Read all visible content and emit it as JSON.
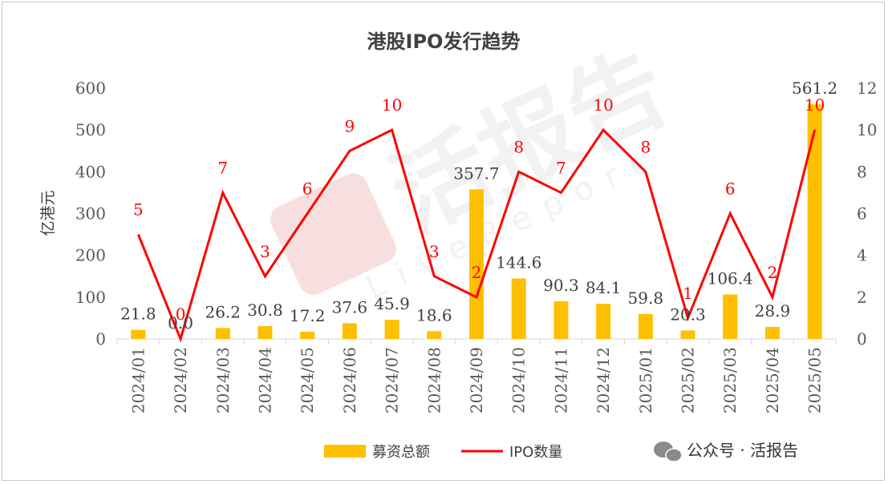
{
  "chart_data": {
    "type": "bar+line",
    "title": "港股IPO发行趋势",
    "ylabel_left": "亿港元",
    "categories": [
      "2024/01",
      "2024/02",
      "2024/03",
      "2024/04",
      "2024/05",
      "2024/06",
      "2024/07",
      "2024/08",
      "2024/09",
      "2024/10",
      "2024/11",
      "2024/12",
      "2025/01",
      "2025/02",
      "2025/03",
      "2025/04",
      "2025/05"
    ],
    "series": [
      {
        "name": "募资总额",
        "type": "bar",
        "axis": "left",
        "color": "#ffc000",
        "values": [
          21.8,
          0.0,
          26.2,
          30.8,
          17.2,
          37.6,
          45.9,
          18.6,
          357.7,
          144.6,
          90.3,
          84.1,
          59.8,
          20.3,
          106.4,
          28.9,
          561.2
        ],
        "labels": [
          "21.8",
          "0.0",
          "26.2",
          "30.8",
          "17.2",
          "37.6",
          "45.9",
          "18.6",
          "357.7",
          "144.6",
          "90.3",
          "84.1",
          "59.8",
          "20.3",
          "106.4",
          "28.9",
          "561.2"
        ]
      },
      {
        "name": "IPO数量",
        "type": "line",
        "axis": "right",
        "color": "#ff0000",
        "values": [
          5,
          0,
          7,
          3,
          6,
          9,
          10,
          3,
          2,
          8,
          7,
          10,
          8,
          1,
          6,
          2,
          10
        ],
        "labels": [
          "5",
          "0",
          "7",
          "3",
          "6",
          "9",
          "10",
          "3",
          "2",
          "8",
          "7",
          "10",
          "8",
          "1",
          "6",
          "2",
          "10"
        ]
      }
    ],
    "y_left": {
      "min": 0,
      "max": 600,
      "ticks": [
        "0",
        "100",
        "200",
        "300",
        "400",
        "500",
        "600"
      ]
    },
    "y_right": {
      "min": 0,
      "max": 12,
      "ticks": [
        "0",
        "2",
        "4",
        "6",
        "8",
        "10",
        "12"
      ]
    },
    "grid": false,
    "legend_position": "bottom"
  },
  "watermark": {
    "text": "活报告",
    "sub": "LiveReport"
  },
  "footer": {
    "brand": "公众号 · 活报告"
  }
}
